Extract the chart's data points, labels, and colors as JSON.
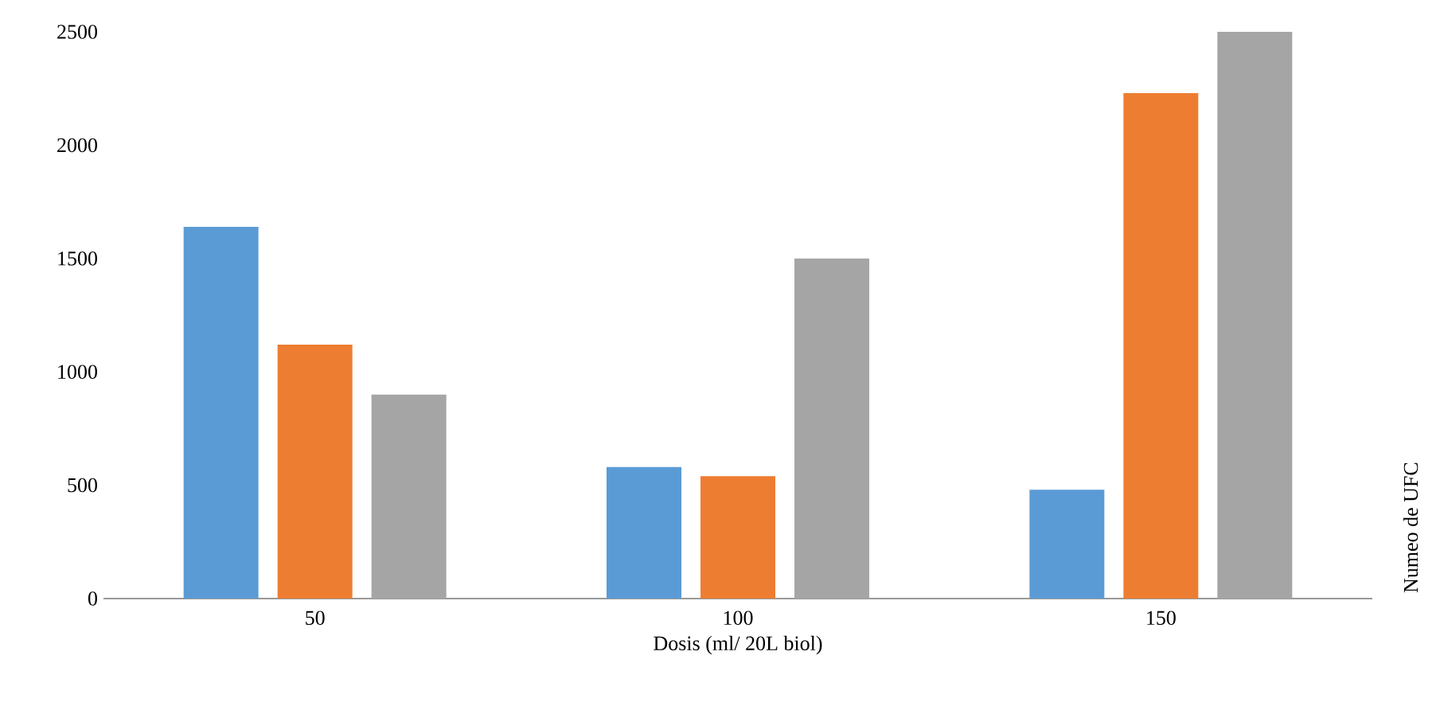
{
  "chart_data": {
    "type": "bar",
    "xlabel": "Dosis (ml/ 20L biol)",
    "ylabel": "Numeo de UFC",
    "categories": [
      "50",
      "100",
      "150"
    ],
    "series": [
      {
        "color": "#5b9bd5",
        "values": [
          1640,
          580,
          480
        ]
      },
      {
        "color": "#ed7d31",
        "values": [
          1120,
          540,
          2230
        ]
      },
      {
        "color": "#a5a5a5",
        "values": [
          900,
          1500,
          2500
        ]
      }
    ],
    "ylim": [
      0,
      2500
    ],
    "yticks": [
      0,
      500,
      1000,
      1500,
      2000,
      2500
    ]
  }
}
